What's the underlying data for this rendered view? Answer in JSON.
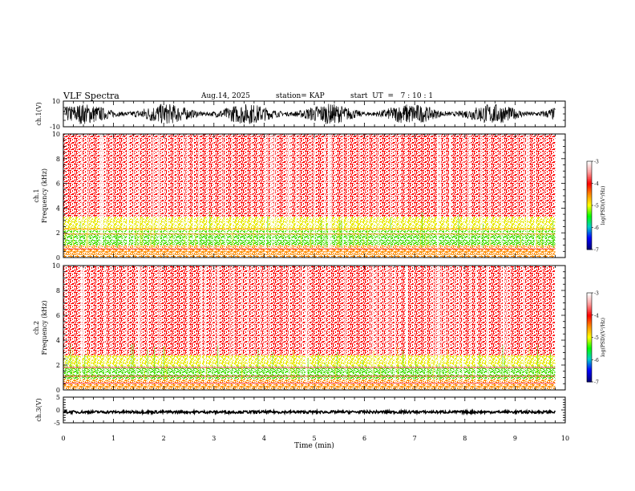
{
  "header": {
    "title": "VLF Spectra",
    "date": "Aug.14, 2025",
    "station": "station= KAP",
    "start": "start  UT  =   7 : 10 : 1"
  },
  "chart_data": [
    {
      "type": "line",
      "name": "ch1-waveform",
      "ylabel": "ch.1(V)",
      "ylim": [
        -10,
        10
      ],
      "yticks": [
        10,
        -10
      ],
      "xlim": [
        0,
        10
      ],
      "data_x_end": 9.8,
      "envelope": {
        "center": 0,
        "amplitude": 8
      }
    },
    {
      "type": "heatmap",
      "name": "ch1-spectrogram",
      "ylabel": "ch.1 Frequency (kHz)",
      "ylim": [
        0,
        10
      ],
      "yticks": [
        0,
        2,
        4,
        6,
        8,
        10
      ],
      "xlim": [
        0,
        10
      ],
      "data_x_end": 9.8,
      "bands": [
        {
          "from": 0,
          "to": 1,
          "level": "orange"
        },
        {
          "from": 1,
          "to": 2.2,
          "level": "green"
        },
        {
          "from": 2.2,
          "to": 3.3,
          "level": "yellow"
        },
        {
          "from": 3.3,
          "to": 10,
          "level": "red"
        }
      ],
      "lines_khz": [
        0.25,
        0.5,
        0.7,
        1.9,
        2.3
      ]
    },
    {
      "type": "heatmap",
      "name": "ch2-spectrogram",
      "ylabel": "ch.2 Frequency (kHz)",
      "ylim": [
        0,
        10
      ],
      "yticks": [
        0,
        2,
        4,
        6,
        8,
        10
      ],
      "xlim": [
        0,
        10
      ],
      "data_x_end": 9.8,
      "bands": [
        {
          "from": 0,
          "to": 0.9,
          "level": "orange"
        },
        {
          "from": 0.9,
          "to": 1.9,
          "level": "green"
        },
        {
          "from": 1.9,
          "to": 2.8,
          "level": "yellow"
        },
        {
          "from": 2.8,
          "to": 10,
          "level": "red"
        }
      ],
      "lines_khz": [
        0.3,
        0.55,
        1.1,
        1.8
      ]
    },
    {
      "type": "line",
      "name": "ch3-waveform",
      "ylabel": "ch.3(V)",
      "ylim": [
        -5,
        5
      ],
      "yticks": [
        5,
        0,
        -5
      ],
      "xlim": [
        0,
        10
      ],
      "data_x_end": 9.8,
      "envelope": {
        "center": -0.8,
        "amplitude": 0.5
      }
    }
  ],
  "xaxis": {
    "label": "Time (min)",
    "ticks": [
      0,
      1,
      2,
      3,
      4,
      5,
      6,
      7,
      8,
      9,
      10
    ]
  },
  "colorbar": {
    "label": "log(PSD)(V²/Hz)",
    "ticks": [
      -3,
      -4,
      -5,
      -6,
      -7
    ],
    "range": [
      -7,
      -3
    ]
  },
  "colors": {
    "waveform": "#000000",
    "red": "#ff0000",
    "orange": "#ff8c00",
    "yellow": "#e8e800",
    "green": "#44dd00"
  }
}
